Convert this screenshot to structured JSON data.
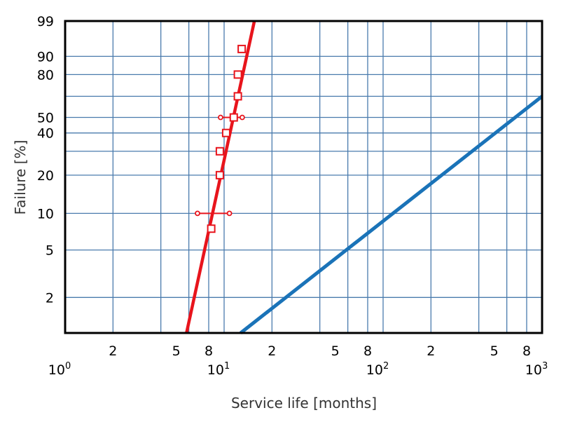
{
  "chart_data": {
    "type": "line",
    "xlabel": "Service life [months]",
    "ylabel": "Failure [%]",
    "x_scale": "log",
    "y_scale": "weibull",
    "xlim": [
      1,
      1000
    ],
    "ylim": [
      1,
      99
    ],
    "grid": true,
    "x_ticks": [
      {
        "value": 2,
        "label": "2"
      },
      {
        "value": 5,
        "label": "5"
      },
      {
        "value": 8,
        "label": "8"
      },
      {
        "value": 20,
        "label": "2"
      },
      {
        "value": 50,
        "label": "5"
      },
      {
        "value": 80,
        "label": "8"
      },
      {
        "value": 200,
        "label": "2"
      },
      {
        "value": 500,
        "label": "5"
      },
      {
        "value": 800,
        "label": "8"
      }
    ],
    "x_decades": [
      {
        "value": 1,
        "base": "10",
        "exp": "0"
      },
      {
        "value": 10,
        "base": "10",
        "exp": "1"
      },
      {
        "value": 100,
        "base": "10",
        "exp": "2"
      },
      {
        "value": 1000,
        "base": "10",
        "exp": "3"
      }
    ],
    "y_ticks": [
      {
        "value": 2,
        "label": "2"
      },
      {
        "value": 5,
        "label": "5"
      },
      {
        "value": 10,
        "label": "10"
      },
      {
        "value": 20,
        "label": "20"
      },
      {
        "value": 40,
        "label": "40"
      },
      {
        "value": 50,
        "label": "50"
      },
      {
        "value": 80,
        "label": "80"
      },
      {
        "value": 90,
        "label": "90"
      },
      {
        "value": 99,
        "label": "99"
      }
    ],
    "y_gridlines": [
      2,
      5,
      10,
      20,
      30,
      40,
      50,
      65,
      80,
      90
    ],
    "x_gridlines": [
      2,
      4,
      6,
      8,
      10,
      20,
      40,
      60,
      80,
      100,
      200,
      400,
      600,
      800
    ],
    "series": [
      {
        "color": "#e8141c",
        "line": [
          [
            5.8,
            1
          ],
          [
            15.5,
            99
          ]
        ],
        "points": [
          [
            8.3,
            7.5
          ],
          [
            9.4,
            20
          ],
          [
            9.4,
            30
          ],
          [
            10.3,
            40
          ],
          [
            11.5,
            50
          ],
          [
            12.2,
            65
          ],
          [
            12.2,
            80
          ],
          [
            12.9,
            93
          ]
        ],
        "intervals": [
          {
            "y": 10,
            "x_low": 6.8,
            "x_high": 10.8
          },
          {
            "y": 50,
            "x_low": 9.5,
            "x_high": 13.0
          }
        ]
      },
      {
        "color": "#1a73b8",
        "line": [
          [
            12.7,
            1
          ],
          [
            1000,
            65
          ]
        ]
      }
    ]
  }
}
